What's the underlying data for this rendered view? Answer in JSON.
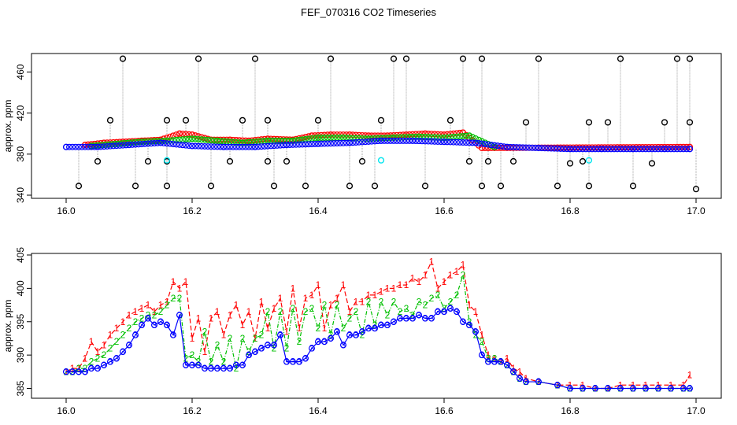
{
  "title": "FEF_070316  CO2 Timeseries",
  "colors": {
    "series1": "#ff0000",
    "series2": "#00c000",
    "series3": "#0000ff",
    "outlier": "#000000",
    "flagged": "#00e5ee",
    "trace": "#a0a0a0"
  },
  "chart_data": [
    {
      "type": "scatter",
      "ylabel": "approx. ppm",
      "xlim": [
        16.0,
        17.0
      ],
      "ylim": [
        340,
        475
      ],
      "xticks": [
        "16.0",
        "16.2",
        "16.4",
        "16.6",
        "16.8",
        "17.0"
      ],
      "yticks": [
        "340",
        "380",
        "420",
        "460"
      ],
      "series": [
        {
          "name": "1",
          "color": "red",
          "x": [
            16.03,
            16.06,
            16.09,
            16.12,
            16.15,
            16.18,
            16.2,
            16.23,
            16.26,
            16.29,
            16.32,
            16.36,
            16.39,
            16.42,
            16.45,
            16.48,
            16.51,
            16.54,
            16.57,
            16.6,
            16.63,
            16.66,
            16.99
          ],
          "y": [
            389,
            391,
            392,
            393,
            394,
            400,
            399,
            394,
            394,
            393,
            395,
            394,
            398,
            399,
            399,
            398,
            398,
            399,
            400,
            399,
            401,
            386,
            387
          ]
        },
        {
          "name": "2",
          "color": "green",
          "x": [
            16.04,
            16.08,
            16.12,
            16.16,
            16.2,
            16.24,
            16.28,
            16.32,
            16.36,
            16.4,
            16.44,
            16.48,
            16.52,
            16.56,
            16.6,
            16.64,
            16.68
          ],
          "y": [
            388,
            390,
            392,
            393,
            395,
            393,
            391,
            393,
            393,
            396,
            396,
            395,
            396,
            397,
            396,
            398,
            387
          ]
        },
        {
          "name": "3",
          "color": "blue",
          "x": [
            16.0,
            16.05,
            16.1,
            16.15,
            16.2,
            16.25,
            16.3,
            16.35,
            16.4,
            16.45,
            16.5,
            16.55,
            16.6,
            16.65,
            16.7,
            16.75,
            16.8,
            16.85,
            16.9,
            16.95,
            16.99
          ],
          "y": [
            387,
            387,
            389,
            391,
            388,
            387,
            387,
            389,
            390,
            391,
            393,
            393,
            392,
            391,
            387,
            386,
            385,
            385,
            385,
            385,
            385
          ]
        },
        {
          "name": "outliers",
          "color": "black",
          "x": [
            16.02,
            16.05,
            16.07,
            16.09,
            16.11,
            16.13,
            16.16,
            16.16,
            16.16,
            16.19,
            16.21,
            16.23,
            16.26,
            16.28,
            16.3,
            16.32,
            16.32,
            16.33,
            16.35,
            16.38,
            16.4,
            16.42,
            16.45,
            16.47,
            16.49,
            16.5,
            16.52,
            16.54,
            16.57,
            16.61,
            16.63,
            16.64,
            16.66,
            16.66,
            16.67,
            16.69,
            16.71,
            16.73,
            16.75,
            16.78,
            16.8,
            16.82,
            16.83,
            16.83,
            16.86,
            16.88,
            16.9,
            16.93,
            16.95,
            16.97,
            16.99,
            16.99,
            17.0
          ],
          "y": [
            349,
            373,
            413,
            473,
            349,
            373,
            373,
            349,
            413,
            413,
            473,
            349,
            373,
            413,
            473,
            373,
            413,
            349,
            373,
            349,
            413,
            473,
            349,
            373,
            349,
            413,
            473,
            473,
            349,
            413,
            473,
            373,
            473,
            349,
            373,
            349,
            373,
            411,
            473,
            349,
            371,
            373,
            349,
            411,
            411,
            473,
            349,
            371,
            411,
            473,
            411,
            473,
            346
          ]
        },
        {
          "name": "flagged",
          "color": "cyan",
          "x": [
            16.16,
            16.5,
            16.83
          ],
          "y": [
            374,
            374,
            374
          ]
        }
      ]
    },
    {
      "type": "line",
      "ylabel": "approx. ppm",
      "xlim": [
        16.0,
        17.0
      ],
      "ylim": [
        384,
        405
      ],
      "xticks": [
        "16.0",
        "16.2",
        "16.4",
        "16.6",
        "16.8",
        "17.0"
      ],
      "yticks": [
        "385",
        "390",
        "395",
        "400",
        "405"
      ],
      "series": [
        {
          "name": "1",
          "color": "red",
          "x": [
            16.0,
            16.01,
            16.02,
            16.03,
            16.04,
            16.05,
            16.06,
            16.07,
            16.08,
            16.09,
            16.1,
            16.11,
            16.12,
            16.13,
            16.14,
            16.15,
            16.16,
            16.17,
            16.18,
            16.19,
            16.2,
            16.21,
            16.22,
            16.23,
            16.24,
            16.25,
            16.26,
            16.27,
            16.28,
            16.29,
            16.3,
            16.31,
            16.32,
            16.33,
            16.34,
            16.35,
            16.36,
            16.37,
            16.38,
            16.39,
            16.4,
            16.41,
            16.42,
            16.43,
            16.44,
            16.45,
            16.46,
            16.47,
            16.48,
            16.49,
            16.5,
            16.51,
            16.52,
            16.53,
            16.54,
            16.55,
            16.56,
            16.57,
            16.58,
            16.59,
            16.6,
            16.61,
            16.62,
            16.63,
            16.64,
            16.65,
            16.66,
            16.67,
            16.68,
            16.69,
            16.7,
            16.71,
            16.72,
            16.73,
            16.75,
            16.78,
            16.8,
            16.82,
            16.84,
            16.86,
            16.88,
            16.9,
            16.92,
            16.94,
            16.96,
            16.98,
            16.99
          ],
          "y": [
            387.5,
            388,
            388,
            389.5,
            392,
            390.5,
            391.5,
            393,
            394,
            395,
            396,
            396.5,
            397,
            397.5,
            396.5,
            397.5,
            398,
            401,
            400,
            401,
            392.5,
            395.5,
            390.5,
            395.5,
            396.5,
            393,
            396,
            397.5,
            394.5,
            396.5,
            392.5,
            398,
            394,
            397,
            398.5,
            393.5,
            400,
            394,
            398.5,
            399,
            400.5,
            394,
            397.5,
            398.5,
            400.5,
            396.5,
            398,
            398,
            399,
            399,
            399.5,
            400,
            400,
            400.5,
            400.5,
            401.5,
            401,
            402,
            404,
            400,
            401,
            402,
            402.5,
            403.5,
            397.5,
            396.5,
            393,
            390,
            389.5,
            389,
            389.5,
            388,
            387.5,
            386.5,
            386,
            385.5,
            385.5,
            385.5,
            385,
            385,
            385.5,
            385.5,
            385.5,
            385.5,
            385.5,
            385.5,
            387
          ]
        },
        {
          "name": "2",
          "color": "green",
          "x": [
            16.0,
            16.01,
            16.02,
            16.03,
            16.04,
            16.05,
            16.06,
            16.07,
            16.08,
            16.09,
            16.1,
            16.11,
            16.12,
            16.13,
            16.14,
            16.15,
            16.16,
            16.17,
            16.18,
            16.19,
            16.2,
            16.21,
            16.22,
            16.23,
            16.24,
            16.25,
            16.26,
            16.27,
            16.28,
            16.29,
            16.3,
            16.31,
            16.32,
            16.33,
            16.34,
            16.35,
            16.36,
            16.37,
            16.38,
            16.39,
            16.4,
            16.41,
            16.42,
            16.43,
            16.44,
            16.45,
            16.46,
            16.47,
            16.48,
            16.49,
            16.5,
            16.51,
            16.52,
            16.53,
            16.54,
            16.55,
            16.56,
            16.57,
            16.58,
            16.59,
            16.6,
            16.61,
            16.62,
            16.63,
            16.64,
            16.65,
            16.66,
            16.67,
            16.68,
            16.69,
            16.7,
            16.71,
            16.72,
            16.73,
            16.75,
            16.78,
            16.8,
            16.82,
            16.84,
            16.86,
            16.88,
            16.9,
            16.92,
            16.94,
            16.96,
            16.98,
            16.99
          ],
          "y": [
            387.5,
            387.5,
            388,
            388,
            389,
            389.5,
            390,
            391,
            392,
            393,
            394,
            395,
            395.5,
            396,
            396,
            396.5,
            397.5,
            398.5,
            398.5,
            389.5,
            390,
            389,
            393.5,
            389,
            391.5,
            389,
            392.5,
            388,
            392.5,
            390.5,
            392.5,
            393,
            396.5,
            391,
            396.5,
            391,
            397,
            392,
            396.5,
            397,
            394,
            397.5,
            393,
            397.5,
            394,
            395.5,
            396.5,
            393,
            398,
            394.5,
            398,
            396,
            398,
            396.5,
            397,
            396,
            398,
            397.5,
            398.5,
            399,
            397,
            398,
            399,
            402,
            395,
            393,
            392,
            389.5,
            389.5,
            389,
            388.5,
            387.5,
            386.5,
            386,
            386,
            385.5,
            385,
            385,
            385,
            385,
            385,
            385,
            385,
            385,
            385,
            385,
            385
          ]
        },
        {
          "name": "3",
          "color": "blue",
          "x": [
            16.0,
            16.01,
            16.02,
            16.03,
            16.04,
            16.05,
            16.06,
            16.07,
            16.08,
            16.09,
            16.1,
            16.11,
            16.12,
            16.13,
            16.14,
            16.15,
            16.16,
            16.17,
            16.18,
            16.19,
            16.2,
            16.21,
            16.22,
            16.23,
            16.24,
            16.25,
            16.26,
            16.27,
            16.28,
            16.29,
            16.3,
            16.31,
            16.32,
            16.33,
            16.34,
            16.35,
            16.36,
            16.37,
            16.38,
            16.39,
            16.4,
            16.41,
            16.42,
            16.43,
            16.44,
            16.45,
            16.46,
            16.47,
            16.48,
            16.49,
            16.5,
            16.51,
            16.52,
            16.53,
            16.54,
            16.55,
            16.56,
            16.57,
            16.58,
            16.59,
            16.6,
            16.61,
            16.62,
            16.63,
            16.64,
            16.65,
            16.66,
            16.67,
            16.68,
            16.69,
            16.7,
            16.71,
            16.72,
            16.73,
            16.75,
            16.78,
            16.8,
            16.82,
            16.84,
            16.86,
            16.88,
            16.9,
            16.92,
            16.94,
            16.96,
            16.98,
            16.99
          ],
          "y": [
            387.5,
            387.5,
            387.5,
            387.5,
            388,
            388,
            388.5,
            389,
            389.5,
            390.5,
            391.5,
            393,
            394.5,
            395.5,
            394.5,
            395,
            394.5,
            393,
            396,
            388.5,
            388.5,
            388.5,
            388,
            388,
            388,
            388,
            388,
            388.5,
            388.5,
            390,
            390.5,
            391,
            391.5,
            391.5,
            393,
            389,
            389,
            389,
            389.5,
            391,
            392,
            392,
            392.5,
            393.5,
            391.5,
            393,
            393,
            393.5,
            394,
            394,
            394.5,
            394.5,
            395,
            395.5,
            395.5,
            395.5,
            396,
            395.5,
            395.5,
            396.5,
            396.5,
            397,
            396.5,
            395,
            394.5,
            393.5,
            390,
            389,
            389,
            389,
            388.5,
            387.5,
            386.5,
            386,
            386,
            385.5,
            385,
            385,
            385,
            385,
            385,
            385,
            385,
            385,
            385,
            385,
            385
          ]
        }
      ]
    }
  ]
}
